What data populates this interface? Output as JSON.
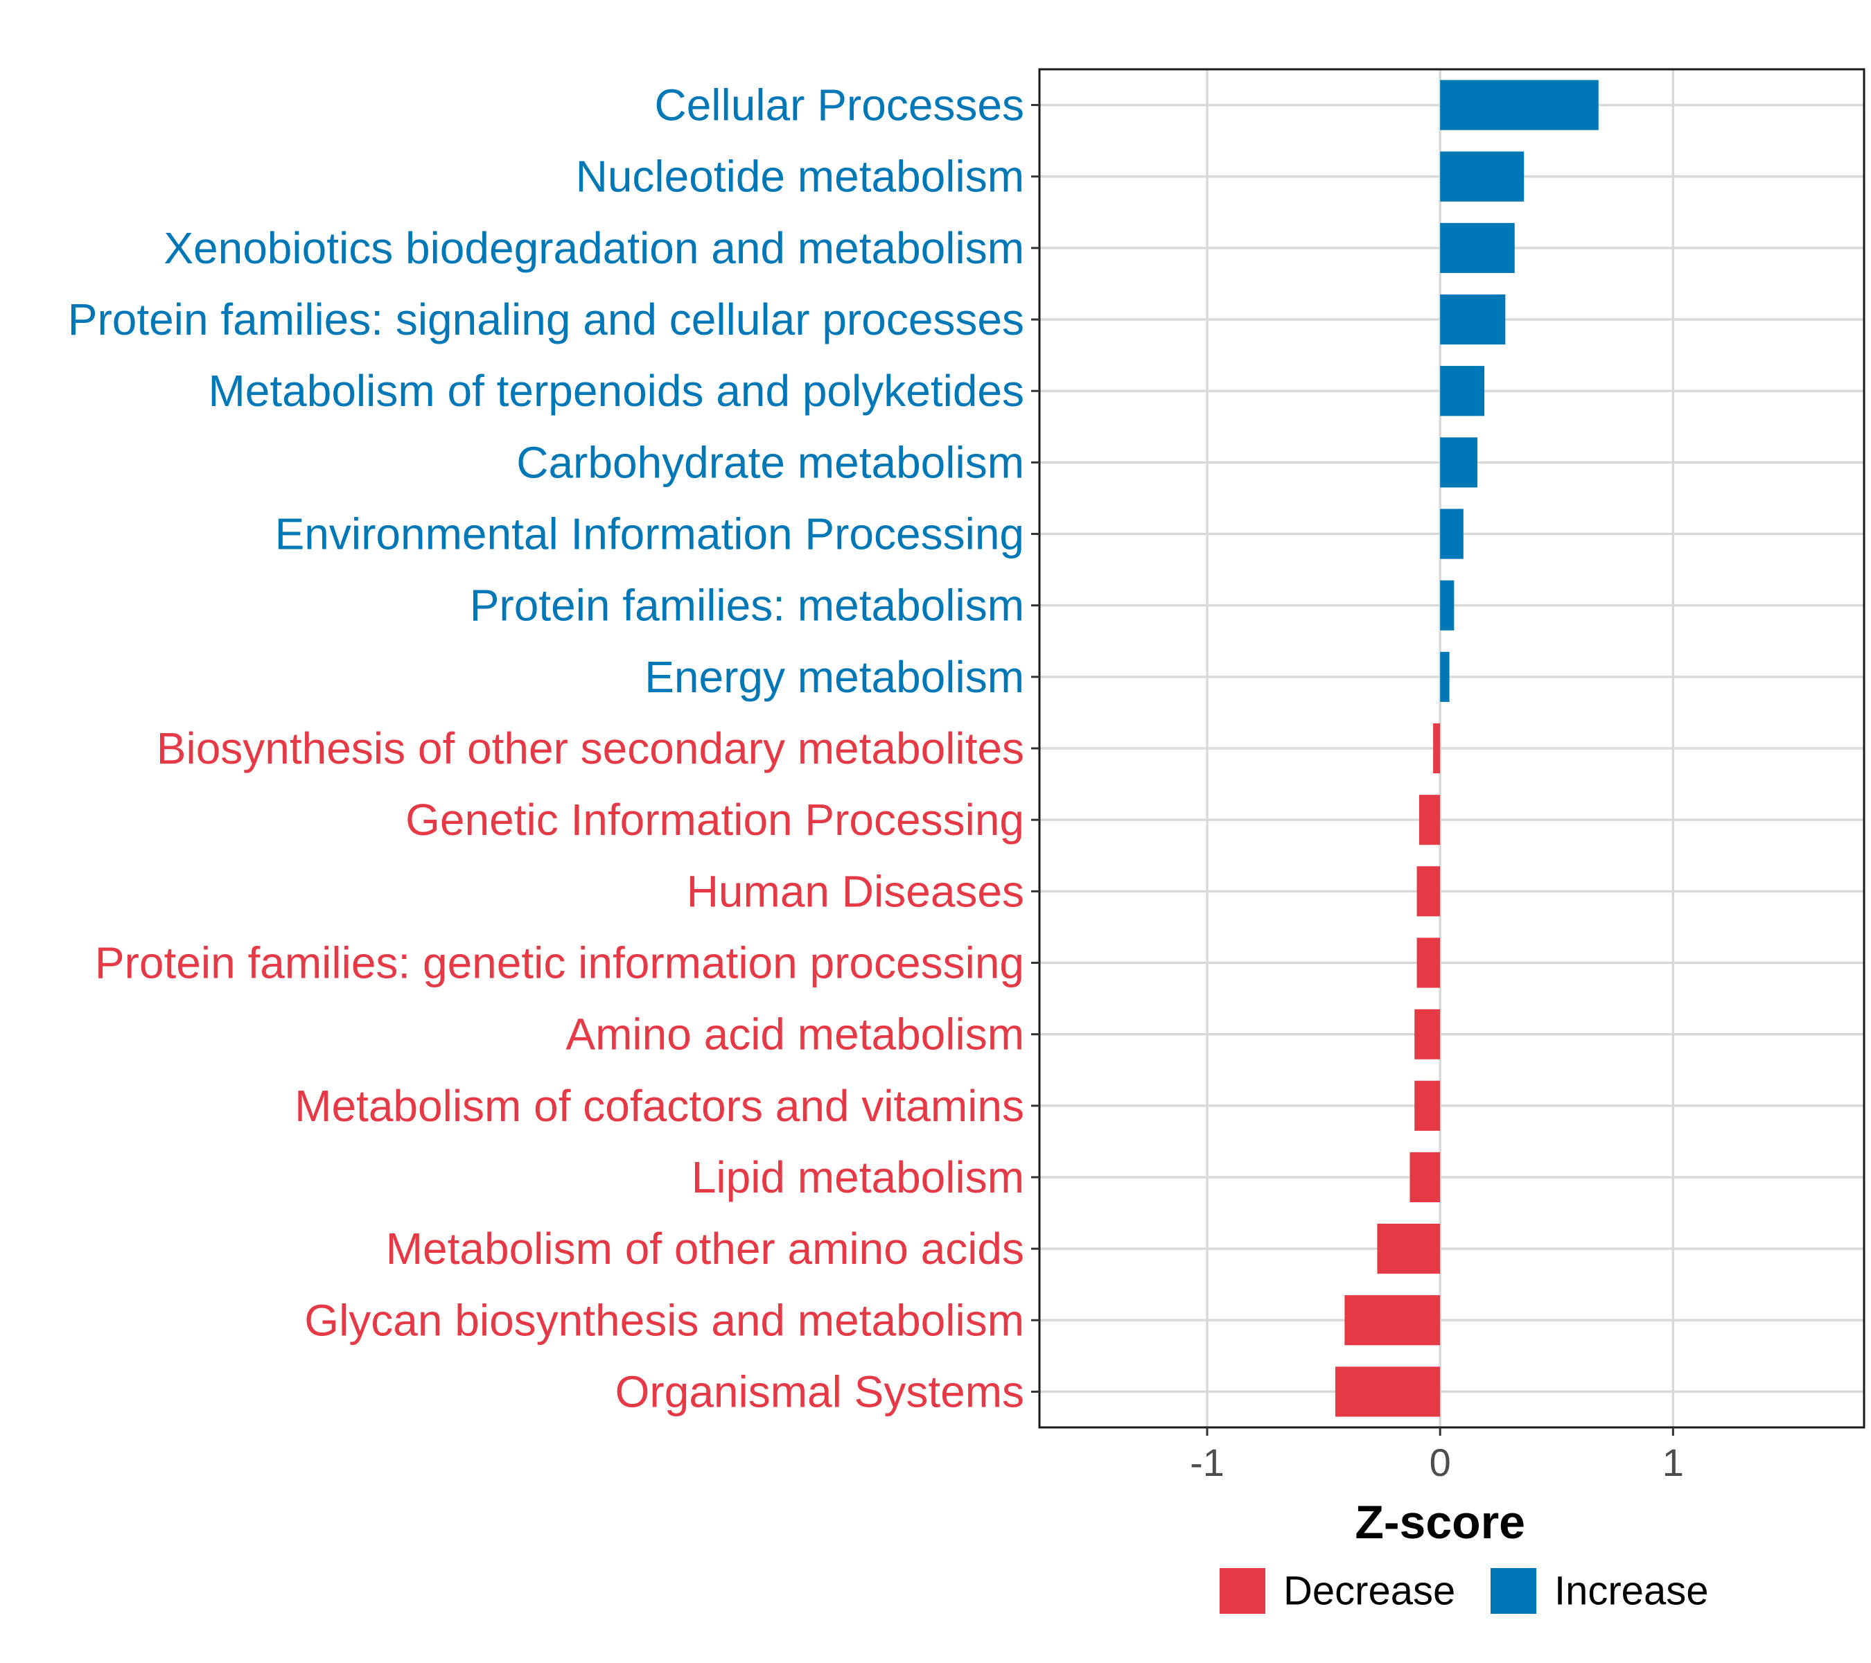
{
  "chart_data": {
    "type": "bar",
    "orientation": "horizontal",
    "title": "",
    "xlabel": "Z-score",
    "ylabel": "",
    "xlim": [
      -1.72,
      1.82
    ],
    "xticks": [
      -1,
      0,
      1
    ],
    "xtick_labels": [
      "-1",
      "0",
      "1"
    ],
    "grid": true,
    "legend_position": "bottom",
    "categories": [
      "Cellular Processes",
      "Nucleotide metabolism",
      "Xenobiotics biodegradation and metabolism",
      "Protein families: signaling and cellular processes",
      "Metabolism of terpenoids and polyketides",
      "Carbohydrate metabolism",
      "Environmental Information Processing",
      "Protein families: metabolism",
      "Energy metabolism",
      "Biosynthesis of other secondary metabolites",
      "Genetic Information Processing",
      "Human Diseases",
      "Protein families: genetic information processing",
      "Amino acid metabolism",
      "Metabolism of cofactors and vitamins",
      "Lipid metabolism",
      "Metabolism of other amino acids",
      "Glycan biosynthesis and metabolism",
      "Organismal Systems"
    ],
    "values": [
      0.68,
      0.36,
      0.32,
      0.28,
      0.19,
      0.16,
      0.1,
      0.06,
      0.04,
      -0.03,
      -0.09,
      -0.1,
      -0.1,
      -0.11,
      -0.11,
      -0.13,
      -0.27,
      -0.41,
      -0.45
    ],
    "groups": [
      "Increase",
      "Increase",
      "Increase",
      "Increase",
      "Increase",
      "Increase",
      "Increase",
      "Increase",
      "Increase",
      "Decrease",
      "Decrease",
      "Decrease",
      "Decrease",
      "Decrease",
      "Decrease",
      "Decrease",
      "Decrease",
      "Decrease",
      "Decrease"
    ],
    "legend": [
      {
        "name": "Decrease",
        "color": "#e63946"
      },
      {
        "name": "Increase",
        "color": "#0077b6"
      }
    ]
  }
}
